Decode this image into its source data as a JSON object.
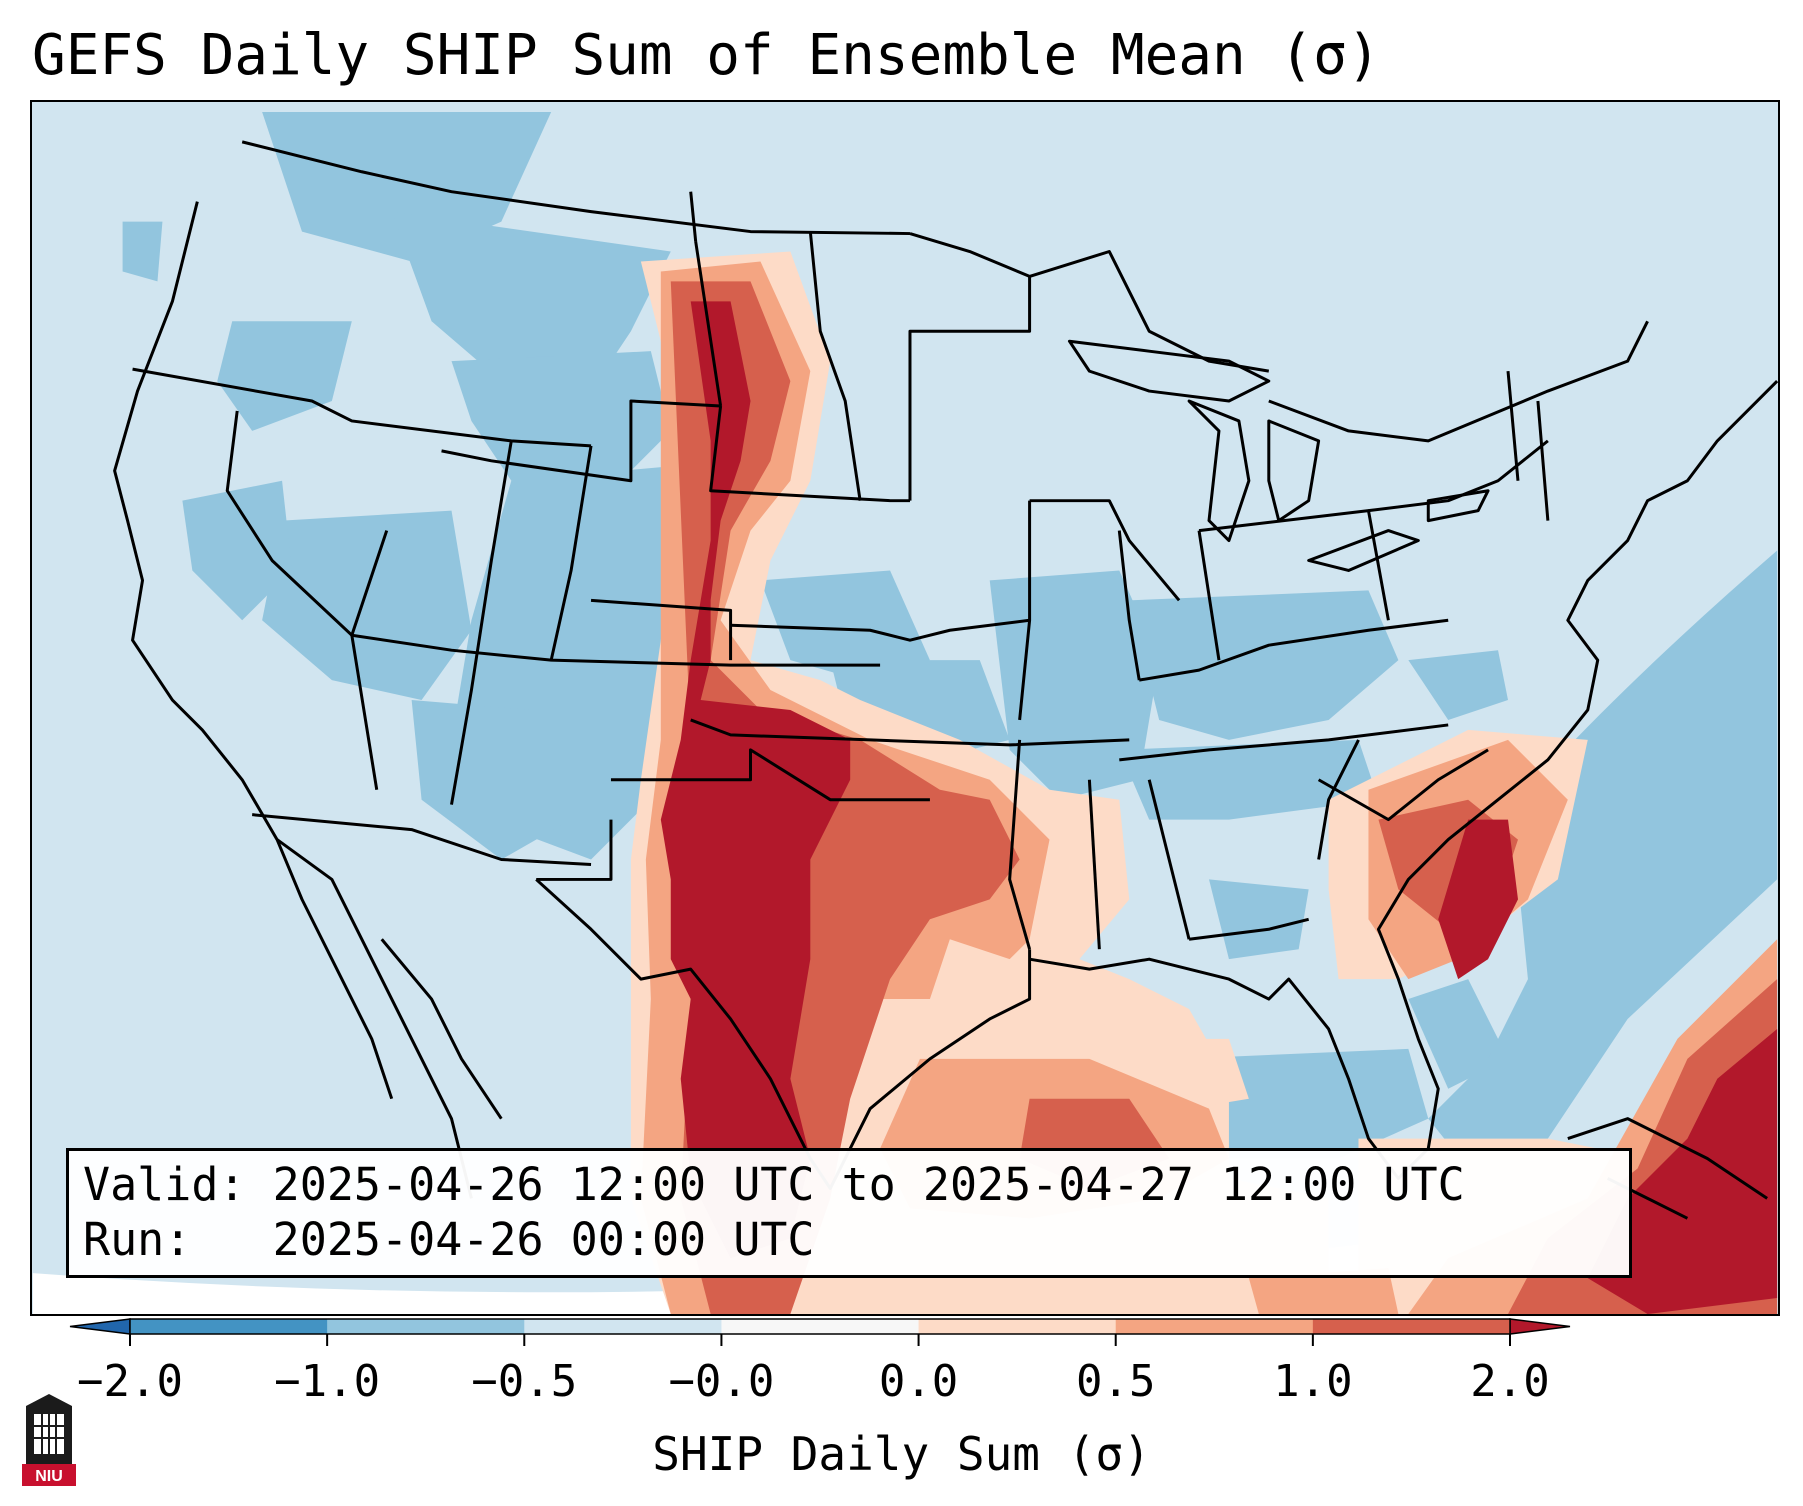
{
  "title": "GEFS Daily SHIP Sum of Ensemble Mean (σ)",
  "info": {
    "valid": "Valid: 2025-04-26 12:00 UTC to 2025-04-27 12:00 UTC",
    "run": "Run:   2025-04-26 00:00 UTC"
  },
  "colorbar": {
    "label": "SHIP Daily Sum (σ)",
    "ticks": [
      "−2.0",
      "−1.0",
      "−0.5",
      "−0.0",
      "0.0",
      "0.5",
      "1.0",
      "2.0"
    ],
    "colors": [
      "#4393c3",
      "#92c5de",
      "#d1e5f0",
      "#f7f7f7",
      "#fddbc7",
      "#f4a582",
      "#d6604d"
    ],
    "extend_min_color": "#2166ac",
    "extend_max_color": "#b2182b"
  },
  "map": {
    "projection": "Lambert conformal, CONUS",
    "layers": [
      "state-borders",
      "coastlines",
      "country-borders",
      "ship-shading"
    ]
  },
  "logo": {
    "text": "NIU"
  }
}
